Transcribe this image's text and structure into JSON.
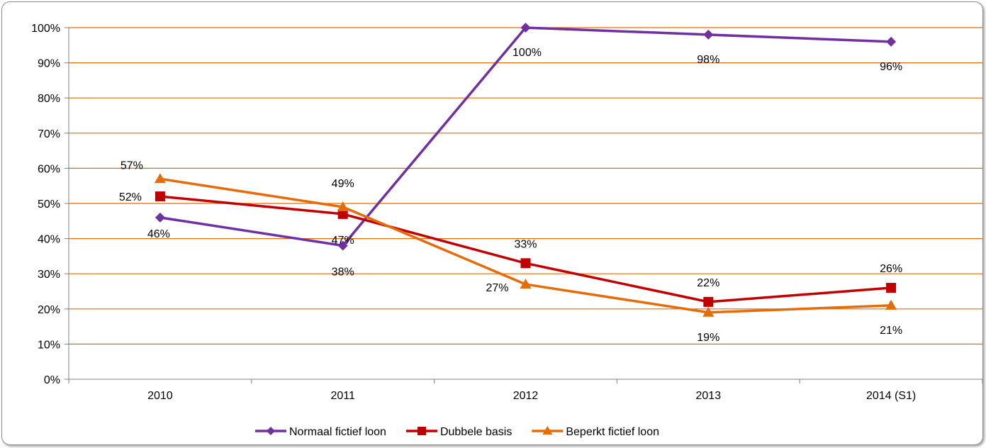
{
  "chart_data": {
    "type": "line",
    "categories": [
      "2010",
      "2011",
      "2012",
      "2013",
      "2014 (S1)"
    ],
    "series": [
      {
        "name": "Normaal fictief loon",
        "values": [
          46,
          38,
          100,
          98,
          96
        ],
        "labels": [
          "46%",
          "38%",
          "100%",
          "98%",
          "96%"
        ],
        "color": "#7030a0",
        "marker": "diamond"
      },
      {
        "name": "Dubbele basis",
        "values": [
          52,
          47,
          33,
          22,
          26
        ],
        "labels": [
          "52%",
          "47%",
          "33%",
          "22%",
          "26%"
        ],
        "color": "#c00000",
        "marker": "square"
      },
      {
        "name": "Beperkt fictief loon",
        "values": [
          57,
          49,
          27,
          19,
          21
        ],
        "labels": [
          "57%",
          "49%",
          "27%",
          "19%",
          "21%"
        ],
        "color": "#e46c0a",
        "marker": "triangle"
      }
    ],
    "yticks": [
      "0%",
      "10%",
      "20%",
      "30%",
      "40%",
      "50%",
      "60%",
      "70%",
      "80%",
      "90%",
      "100%"
    ],
    "ylim": [
      0,
      100
    ],
    "grid": true,
    "grid_color": "#e46c0a",
    "legend": "bottom"
  }
}
